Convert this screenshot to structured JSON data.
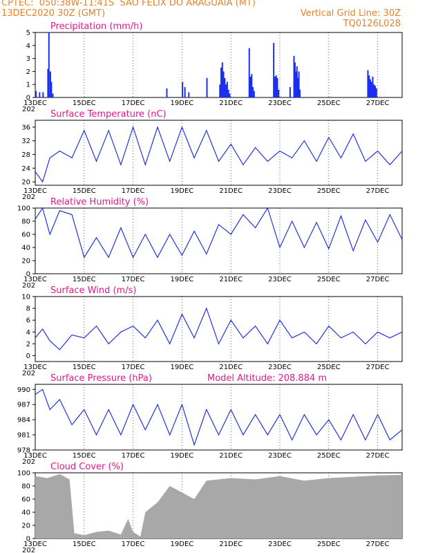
{
  "header": {
    "line1_left": "CPTEC:  050:38W-11:41S  SAO FELIX DO ARAGUAIA (MT)",
    "line2_left": "13DEC2020 30Z (GMT)",
    "line2_right": "Vertical Grid Line: 30Z",
    "line3_right": "TQ0126L028"
  },
  "colors": {
    "header": "#e8822b",
    "title": "#e6168f",
    "series": "#2233dd",
    "bars": "#1a2ef0",
    "cloud": "#a8a8a8"
  },
  "x_axis": {
    "day_range": [
      13,
      28
    ],
    "labels": [
      "13DEC",
      "15DEC",
      "17DEC",
      "19DEC",
      "21DEC",
      "23DEC",
      "25DEC",
      "27DEC"
    ],
    "label_days": [
      13,
      15,
      17,
      19,
      21,
      23,
      25,
      27
    ],
    "partial_year_label": "202"
  },
  "chart_data": [
    {
      "type": "bar",
      "title": "Precipitation (mm/h)",
      "ylim": [
        0,
        5
      ],
      "yticks": [
        0,
        1,
        2,
        3,
        4,
        5
      ],
      "x_days": [
        13.03,
        13.18,
        13.32,
        13.52,
        13.56,
        13.62,
        13.66,
        13.72,
        18.38,
        19.02,
        19.12,
        19.28,
        20.02,
        20.55,
        20.6,
        20.65,
        20.7,
        20.75,
        20.8,
        20.85,
        20.9,
        20.95,
        21.75,
        21.8,
        21.85,
        21.9,
        21.95,
        22.75,
        22.8,
        22.85,
        22.9,
        22.95,
        23.42,
        23.58,
        23.62,
        23.66,
        23.7,
        23.74,
        23.78,
        23.82,
        26.6,
        26.65,
        26.7,
        26.75,
        26.8,
        26.85,
        26.9,
        26.95
      ],
      "values": [
        0.5,
        0.4,
        0.4,
        2.2,
        5.0,
        2.0,
        1.2,
        0.3,
        0.7,
        1.2,
        0.8,
        0.4,
        1.5,
        1.0,
        2.3,
        2.7,
        2.0,
        1.5,
        1.0,
        1.2,
        0.6,
        0.3,
        3.8,
        1.6,
        1.8,
        0.8,
        0.5,
        4.2,
        1.6,
        1.7,
        1.5,
        0.6,
        0.8,
        3.2,
        2.7,
        2.0,
        2.4,
        1.5,
        2.0,
        0.6,
        2.1,
        1.7,
        1.4,
        1.2,
        1.6,
        1.0,
        0.9,
        0.7
      ]
    },
    {
      "type": "line",
      "title": "Surface Temperature (nC)",
      "ylim": [
        19,
        38
      ],
      "yticks": [
        20,
        24,
        28,
        32,
        36
      ],
      "x": [
        13.0,
        13.3,
        13.6,
        14.0,
        14.5,
        15.0,
        15.5,
        16.0,
        16.5,
        17.0,
        17.5,
        18.0,
        18.5,
        19.0,
        19.5,
        20.0,
        20.5,
        21.0,
        21.5,
        22.0,
        22.5,
        23.0,
        23.5,
        24.0,
        24.5,
        25.0,
        25.5,
        26.0,
        26.5,
        27.0,
        27.5,
        28.0
      ],
      "y": [
        23,
        20,
        27,
        29,
        27,
        35,
        26,
        35,
        25,
        36,
        25,
        36,
        26,
        36,
        27,
        35,
        26,
        31,
        25,
        30,
        26,
        29,
        27,
        32,
        26,
        33,
        27,
        34,
        26,
        29,
        25,
        29
      ]
    },
    {
      "type": "line",
      "title": "Relative Humidity (%)",
      "ylim": [
        0,
        100
      ],
      "yticks": [
        0,
        20,
        40,
        60,
        80,
        100
      ],
      "x": [
        13.0,
        13.3,
        13.6,
        14.0,
        14.5,
        15.0,
        15.5,
        16.0,
        16.5,
        17.0,
        17.5,
        18.0,
        18.5,
        19.0,
        19.5,
        20.0,
        20.5,
        21.0,
        21.5,
        22.0,
        22.5,
        23.0,
        23.5,
        24.0,
        24.5,
        25.0,
        25.5,
        26.0,
        26.5,
        27.0,
        27.5,
        28.0
      ],
      "y": [
        83,
        100,
        60,
        96,
        90,
        25,
        55,
        25,
        70,
        25,
        60,
        25,
        60,
        28,
        65,
        30,
        75,
        60,
        90,
        70,
        100,
        40,
        80,
        40,
        78,
        38,
        88,
        35,
        82,
        48,
        90,
        52
      ]
    },
    {
      "type": "line",
      "title": "Surface Wind (m/s)",
      "ylim": [
        -1,
        10
      ],
      "yticks": [
        0,
        2,
        4,
        6,
        8,
        10
      ],
      "x": [
        13.0,
        13.3,
        13.6,
        14.0,
        14.5,
        15.0,
        15.5,
        16.0,
        16.5,
        17.0,
        17.5,
        18.0,
        18.5,
        19.0,
        19.5,
        20.0,
        20.5,
        21.0,
        21.5,
        22.0,
        22.5,
        23.0,
        23.5,
        24.0,
        24.5,
        25.0,
        25.5,
        26.0,
        26.5,
        27.0,
        27.5,
        28.0
      ],
      "y": [
        3,
        4.5,
        2.5,
        1,
        3.5,
        3,
        5,
        2,
        4,
        5,
        3,
        6,
        2,
        7,
        3,
        8,
        2,
        6,
        3,
        5,
        2,
        6,
        3,
        4,
        2,
        5,
        3,
        4,
        2,
        4,
        3,
        4
      ]
    },
    {
      "type": "line",
      "title": "Surface Pressure (hPa)",
      "annotation": "Model Altitude: 208.884 m",
      "ylim": [
        978,
        991
      ],
      "yticks": [
        978,
        981,
        984,
        987,
        990
      ],
      "x": [
        13.0,
        13.3,
        13.6,
        14.0,
        14.5,
        15.0,
        15.5,
        16.0,
        16.5,
        17.0,
        17.5,
        18.0,
        18.5,
        19.0,
        19.5,
        20.0,
        20.5,
        21.0,
        21.5,
        22.0,
        22.5,
        23.0,
        23.5,
        24.0,
        24.5,
        25.0,
        25.5,
        26.0,
        26.5,
        27.0,
        27.5,
        28.0
      ],
      "y": [
        989,
        990,
        986,
        988,
        983,
        986,
        981,
        986,
        981,
        987,
        982,
        987,
        981,
        987,
        979,
        986,
        981,
        986,
        981,
        985,
        981,
        985,
        980,
        985,
        981,
        984,
        980,
        985,
        980,
        985,
        980,
        982
      ]
    },
    {
      "type": "area",
      "title": "Cloud Cover (%)",
      "ylim": [
        0,
        100
      ],
      "yticks": [
        0,
        20,
        40,
        60,
        80,
        100
      ],
      "x": [
        13.0,
        13.5,
        14.0,
        14.4,
        14.6,
        15.0,
        15.5,
        16.0,
        16.5,
        16.8,
        17.0,
        17.3,
        17.5,
        18.0,
        18.5,
        19.0,
        19.5,
        20.0,
        21.0,
        22.0,
        23.0,
        24.0,
        25.0,
        26.0,
        27.0,
        28.0
      ],
      "y": [
        95,
        92,
        98,
        90,
        8,
        5,
        10,
        12,
        6,
        30,
        10,
        3,
        40,
        55,
        80,
        70,
        60,
        88,
        92,
        90,
        95,
        88,
        92,
        94,
        96,
        97
      ]
    }
  ]
}
